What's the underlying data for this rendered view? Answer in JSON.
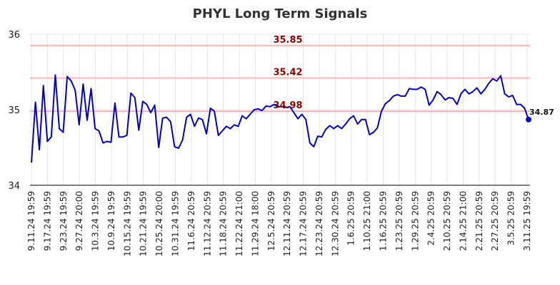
{
  "chart_data": {
    "type": "line",
    "title": "PHYL Long Term Signals",
    "xlabel": "",
    "ylabel": "",
    "ylim": [
      34,
      36
    ],
    "yticks": [
      "34",
      "35",
      "36"
    ],
    "grid": true,
    "colors": {
      "line": "#0000cc",
      "hline": "#ffb3b3",
      "hlabel": "#8b0000",
      "grid": "#e6e6e6"
    },
    "x_tick_labels": [
      "9.11.24 19:59",
      "9.17.24 19:59",
      "9.23.24 19:59",
      "9.27.24 20:00",
      "10.3.24 19:59",
      "10.9.24 19:59",
      "10.15.24 19:59",
      "10.21.24 19:59",
      "10.25.24 20:00",
      "10.31.24 19:59",
      "11.6.24 20:59",
      "11.12.24 20:59",
      "11.18.24 20:59",
      "11.22.24 21:00",
      "11.29.24 18:00",
      "12.5.24 20:59",
      "12.11.24 20:59",
      "12.17.24 20:59",
      "12.23.24 20:59",
      "12.30.24 20:59",
      "1.6.25 20:59",
      "1.10.25 21:00",
      "1.16.25 20:59",
      "1.23.25 20:59",
      "1.29.25 20:59",
      "2.4.25 20:59",
      "2.10.25 20:59",
      "2.14.25 21:00",
      "2.21.25 20:59",
      "2.27.25 20:59",
      "3.5.25 20:59",
      "3.11.25 19:59"
    ],
    "horizontal_lines": [
      {
        "value": 35.85,
        "label": "35.85"
      },
      {
        "value": 35.42,
        "label": "35.42"
      },
      {
        "value": 34.98,
        "label": "34.98"
      }
    ],
    "last_point": {
      "value": 34.87,
      "label": "34.87"
    },
    "series": [
      {
        "values": [
          34.3,
          35.1,
          34.47,
          35.32,
          34.58,
          34.64,
          35.46,
          34.75,
          34.7,
          35.44,
          35.38,
          35.26,
          34.8,
          35.34,
          34.86,
          35.28,
          34.75,
          34.72,
          34.56,
          34.58,
          34.57,
          35.09,
          34.64,
          34.64,
          34.66,
          35.22,
          35.16,
          34.73,
          35.11,
          35.07,
          34.96,
          35.06,
          34.5,
          34.89,
          34.9,
          34.84,
          34.51,
          34.49,
          34.6,
          34.9,
          34.94,
          34.78,
          34.89,
          34.87,
          34.68,
          35.02,
          34.98,
          34.66,
          34.72,
          34.78,
          34.75,
          34.8,
          34.78,
          34.92,
          34.88,
          34.94,
          35.0,
          35.01,
          34.99,
          35.05,
          35.04,
          35.07,
          35.04,
          35.04,
          35.03,
          35.04,
          34.96,
          34.88,
          34.94,
          34.87,
          34.56,
          34.51,
          34.65,
          34.64,
          34.74,
          34.79,
          34.75,
          34.79,
          34.75,
          34.81,
          34.88,
          34.92,
          34.81,
          34.87,
          34.87,
          34.67,
          34.7,
          34.76,
          34.98,
          35.08,
          35.12,
          35.18,
          35.2,
          35.18,
          35.18,
          35.28,
          35.27,
          35.27,
          35.3,
          35.27,
          35.06,
          35.13,
          35.24,
          35.2,
          35.13,
          35.16,
          35.15,
          35.07,
          35.21,
          35.27,
          35.21,
          35.24,
          35.29,
          35.21,
          35.27,
          35.35,
          35.41,
          35.38,
          35.45,
          35.21,
          35.17,
          35.19,
          35.07,
          35.07,
          35.02,
          34.87
        ]
      }
    ]
  }
}
